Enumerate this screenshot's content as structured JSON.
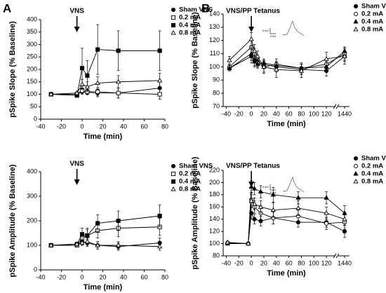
{
  "panels": [
    "A",
    "B"
  ],
  "chart_data": [
    {
      "type": "line",
      "y_label": "pSpike Slope (% Baseline)",
      "x_label": "Time (min)",
      "annotation": {
        "text": "VNS",
        "x": -5
      },
      "xlim": [
        -40,
        80
      ],
      "xticks": [
        -40,
        -20,
        0,
        20,
        40,
        60,
        80
      ],
      "ylim": [
        0,
        400
      ],
      "yticks": [
        0,
        50,
        100,
        150,
        200,
        250,
        300,
        350,
        400
      ],
      "x": [
        -30,
        -5,
        0,
        5,
        15,
        35,
        75
      ],
      "series": [
        {
          "name": "Sham VNS",
          "color": "#000000",
          "marker": "circle",
          "filled": true,
          "values": [
            100,
            100,
            110,
            108,
            105,
            105,
            125
          ],
          "errors": [
            5,
            5,
            10,
            10,
            15,
            20,
            25
          ]
        },
        {
          "name": "0.2 mA",
          "color": "#000000",
          "marker": "square",
          "filled": false,
          "values": [
            100,
            100,
            115,
            110,
            110,
            105,
            100
          ],
          "errors": [
            5,
            5,
            10,
            10,
            15,
            20,
            20
          ]
        },
        {
          "name": "0.4 mA",
          "color": "#000000",
          "marker": "square",
          "filled": true,
          "values": [
            100,
            95,
            205,
            175,
            280,
            275,
            275
          ],
          "errors": [
            5,
            5,
            80,
            60,
            100,
            80,
            80
          ]
        },
        {
          "name": "0.8 mA",
          "color": "#000000",
          "marker": "triangle",
          "filled": false,
          "values": [
            100,
            105,
            140,
            130,
            145,
            150,
            155
          ],
          "errors": [
            5,
            5,
            20,
            20,
            25,
            25,
            30
          ]
        }
      ]
    },
    {
      "type": "line",
      "y_label": "pSpike Amplitude (% Baseline)",
      "x_label": "Time (min)",
      "annotation": {
        "text": "VNS",
        "x": -5
      },
      "xlim": [
        -40,
        80
      ],
      "xticks": [
        -40,
        -20,
        0,
        20,
        40,
        60,
        80
      ],
      "ylim": [
        0,
        400
      ],
      "yticks": [
        0,
        100,
        200,
        300,
        400
      ],
      "x": [
        -30,
        -5,
        0,
        5,
        15,
        35,
        75
      ],
      "series": [
        {
          "name": "Sham VNS",
          "color": "#000000",
          "marker": "circle",
          "filled": true,
          "values": [
            100,
            100,
            115,
            110,
            100,
            95,
            110
          ],
          "errors": [
            5,
            5,
            15,
            15,
            15,
            15,
            20
          ]
        },
        {
          "name": "0.2 mA",
          "color": "#000000",
          "marker": "square",
          "filled": false,
          "values": [
            100,
            100,
            130,
            140,
            160,
            170,
            175
          ],
          "errors": [
            5,
            5,
            20,
            25,
            30,
            35,
            35
          ]
        },
        {
          "name": "0.4 mA",
          "color": "#000000",
          "marker": "square",
          "filled": true,
          "values": [
            100,
            105,
            145,
            140,
            190,
            200,
            220
          ],
          "errors": [
            5,
            5,
            25,
            30,
            35,
            40,
            45
          ]
        },
        {
          "name": "0.8 mA",
          "color": "#000000",
          "marker": "triangle",
          "filled": false,
          "values": [
            100,
            105,
            110,
            115,
            100,
            100,
            95
          ],
          "errors": [
            5,
            5,
            10,
            15,
            15,
            15,
            15
          ]
        }
      ]
    },
    {
      "type": "line",
      "y_label": "pSpike Slope (% Baseline)",
      "x_label": "Time (min)",
      "annotation": {
        "text": "VNS/PP Tetanus",
        "x": 0
      },
      "inset_labels": [
        "5 mV",
        "5 ms"
      ],
      "xlim": [
        -45,
        1450
      ],
      "xbreak": [
        130,
        1430
      ],
      "xticks": [
        -40,
        -20,
        0,
        20,
        40,
        60,
        80,
        100,
        120,
        1440
      ],
      "ylim": [
        70,
        140
      ],
      "yticks": [
        70,
        80,
        90,
        100,
        110,
        120,
        130,
        140
      ],
      "x": [
        -35,
        0,
        5,
        10,
        20,
        40,
        80,
        120,
        1440
      ],
      "series": [
        {
          "name": "Sham VNS",
          "color": "#000000",
          "marker": "circle",
          "filled": true,
          "values": [
            99,
            108,
            105,
            104,
            102,
            100,
            98,
            97,
            108
          ],
          "errors": [
            2,
            5,
            4,
            4,
            3,
            4,
            4,
            4,
            4
          ]
        },
        {
          "name": "0.2 mA",
          "color": "#000000",
          "marker": "circle",
          "filled": false,
          "values": [
            100,
            115,
            110,
            103,
            100,
            102,
            99,
            102,
            110
          ],
          "errors": [
            2,
            5,
            4,
            3,
            4,
            4,
            3,
            4,
            5
          ]
        },
        {
          "name": "0.4 mA",
          "color": "#000000",
          "marker": "triangle",
          "filled": true,
          "values": [
            99,
            110,
            104,
            102,
            103,
            101,
            99,
            100,
            112
          ],
          "errors": [
            2,
            5,
            4,
            3,
            3,
            3,
            4,
            4,
            3
          ]
        },
        {
          "name": "0.8 mA",
          "color": "#000000",
          "marker": "triangle",
          "filled": false,
          "values": [
            105,
            121,
            112,
            108,
            100,
            98,
            97,
            106,
            108
          ],
          "errors": [
            3,
            5,
            5,
            4,
            5,
            6,
            5,
            5,
            6
          ]
        }
      ]
    },
    {
      "type": "line",
      "y_label": "pSpike Amplitude (% Baseline)",
      "x_label": "Time (min)",
      "annotation": {
        "text": "VNS/PP Tetanus",
        "x": 0
      },
      "inset_labels": [
        "5 mV",
        "5 ms"
      ],
      "xlim": [
        -45,
        1450
      ],
      "xbreak": [
        130,
        1430
      ],
      "xticks": [
        -40,
        -20,
        0,
        20,
        40,
        60,
        80,
        100,
        120,
        1440
      ],
      "ylim": [
        80,
        220
      ],
      "yticks": [
        80,
        100,
        120,
        140,
        160,
        180,
        200,
        220
      ],
      "x": [
        -38,
        -5,
        0,
        5,
        15,
        35,
        75,
        120,
        1440
      ],
      "series": [
        {
          "name": "Sham VNS",
          "color": "#000000",
          "marker": "circle",
          "filled": true,
          "values": [
            101,
            100,
            150,
            140,
            137,
            142,
            135,
            135,
            120
          ],
          "errors": [
            2,
            2,
            10,
            8,
            8,
            10,
            8,
            8,
            10
          ]
        },
        {
          "name": "0.2 mA",
          "color": "#000000",
          "marker": "circle",
          "filled": false,
          "values": [
            101,
            100,
            172,
            160,
            150,
            142,
            145,
            133,
            135
          ],
          "errors": [
            2,
            2,
            12,
            10,
            12,
            10,
            10,
            10,
            12
          ]
        },
        {
          "name": "0.4 mA",
          "color": "#000000",
          "marker": "triangle",
          "filled": true,
          "values": [
            100,
            100,
            193,
            190,
            185,
            180,
            175,
            175,
            150
          ],
          "errors": [
            2,
            2,
            10,
            10,
            10,
            12,
            10,
            10,
            12
          ]
        },
        {
          "name": "0.8 mA",
          "color": "#000000",
          "marker": "triangle",
          "filled": false,
          "values": [
            102,
            100,
            170,
            165,
            160,
            155,
            158,
            150,
            140
          ],
          "errors": [
            2,
            2,
            10,
            10,
            10,
            12,
            12,
            10,
            10
          ]
        }
      ]
    }
  ]
}
